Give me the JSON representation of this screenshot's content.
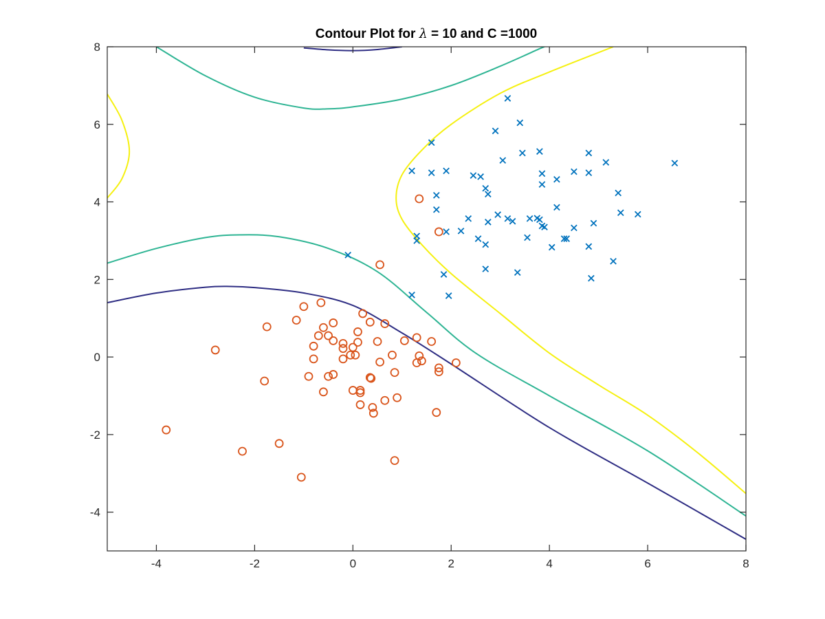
{
  "chart_data": {
    "type": "scatter",
    "title": "Contour Plot for λ = 10 and C =1000",
    "title_parts": {
      "prefix": "Contour Plot for ",
      "symbol": "λ",
      "suffix": " = 10 and C =1000"
    },
    "xlabel": "",
    "ylabel": "",
    "xlim": [
      -5,
      8
    ],
    "ylim": [
      -5,
      8
    ],
    "xticks": [
      -4,
      -2,
      0,
      2,
      4,
      6,
      8
    ],
    "yticks": [
      -4,
      -2,
      0,
      2,
      4,
      6,
      8
    ],
    "grid": false,
    "colors": {
      "crosses": "#0072bd",
      "circles": "#d95319",
      "contour_low": "#2e2d83",
      "contour_mid": "#2db493",
      "contour_high": "#f5f00f",
      "axes": "#262626"
    },
    "series": [
      {
        "marker": "x",
        "color": "#0072bd",
        "points": [
          [
            3.15,
            6.67
          ],
          [
            3.4,
            6.04
          ],
          [
            2.9,
            5.83
          ],
          [
            1.6,
            5.53
          ],
          [
            3.45,
            5.26
          ],
          [
            3.8,
            5.3
          ],
          [
            4.8,
            5.26
          ],
          [
            5.15,
            5.02
          ],
          [
            6.55,
            5.0
          ],
          [
            3.05,
            5.07
          ],
          [
            1.2,
            4.8
          ],
          [
            1.6,
            4.75
          ],
          [
            1.9,
            4.8
          ],
          [
            2.45,
            4.68
          ],
          [
            2.6,
            4.65
          ],
          [
            3.85,
            4.73
          ],
          [
            4.5,
            4.78
          ],
          [
            4.8,
            4.75
          ],
          [
            4.15,
            4.58
          ],
          [
            3.85,
            4.45
          ],
          [
            2.7,
            4.35
          ],
          [
            2.75,
            4.2
          ],
          [
            1.7,
            4.17
          ],
          [
            5.4,
            4.23
          ],
          [
            1.7,
            3.8
          ],
          [
            4.15,
            3.86
          ],
          [
            5.45,
            3.72
          ],
          [
            5.8,
            3.68
          ],
          [
            2.95,
            3.67
          ],
          [
            2.35,
            3.57
          ],
          [
            3.15,
            3.57
          ],
          [
            3.25,
            3.5
          ],
          [
            2.75,
            3.48
          ],
          [
            3.6,
            3.57
          ],
          [
            3.75,
            3.58
          ],
          [
            3.8,
            3.54
          ],
          [
            4.9,
            3.45
          ],
          [
            3.85,
            3.38
          ],
          [
            3.9,
            3.35
          ],
          [
            4.5,
            3.33
          ],
          [
            1.9,
            3.23
          ],
          [
            2.2,
            3.25
          ],
          [
            1.3,
            3.12
          ],
          [
            1.3,
            3.0
          ],
          [
            2.55,
            3.05
          ],
          [
            3.55,
            3.08
          ],
          [
            4.3,
            3.05
          ],
          [
            4.35,
            3.05
          ],
          [
            2.7,
            2.9
          ],
          [
            4.05,
            2.83
          ],
          [
            4.8,
            2.85
          ],
          [
            -0.1,
            2.63
          ],
          [
            5.3,
            2.47
          ],
          [
            2.7,
            2.27
          ],
          [
            3.35,
            2.18
          ],
          [
            1.85,
            2.13
          ],
          [
            4.85,
            2.03
          ],
          [
            1.2,
            1.6
          ],
          [
            1.95,
            1.58
          ]
        ]
      },
      {
        "marker": "o",
        "color": "#d95319",
        "points": [
          [
            1.35,
            4.08
          ],
          [
            1.75,
            3.23
          ],
          [
            0.55,
            2.38
          ],
          [
            -0.65,
            1.4
          ],
          [
            -1.0,
            1.3
          ],
          [
            0.2,
            1.12
          ],
          [
            -1.15,
            0.95
          ],
          [
            -0.4,
            0.88
          ],
          [
            0.35,
            0.9
          ],
          [
            0.65,
            0.86
          ],
          [
            -1.75,
            0.78
          ],
          [
            -0.6,
            0.76
          ],
          [
            0.1,
            0.65
          ],
          [
            -0.7,
            0.55
          ],
          [
            -0.5,
            0.55
          ],
          [
            -0.4,
            0.42
          ],
          [
            0.5,
            0.4
          ],
          [
            1.05,
            0.42
          ],
          [
            1.3,
            0.5
          ],
          [
            1.6,
            0.4
          ],
          [
            -0.2,
            0.35
          ],
          [
            0.1,
            0.38
          ],
          [
            -0.8,
            0.28
          ],
          [
            -0.2,
            0.22
          ],
          [
            0.0,
            0.25
          ],
          [
            -2.8,
            0.18
          ],
          [
            -0.05,
            0.05
          ],
          [
            0.05,
            0.05
          ],
          [
            0.8,
            0.05
          ],
          [
            -0.2,
            -0.05
          ],
          [
            -0.8,
            -0.05
          ],
          [
            1.35,
            0.03
          ],
          [
            0.55,
            -0.13
          ],
          [
            1.3,
            -0.15
          ],
          [
            1.4,
            -0.1
          ],
          [
            2.1,
            -0.15
          ],
          [
            1.75,
            -0.28
          ],
          [
            1.75,
            -0.38
          ],
          [
            0.85,
            -0.4
          ],
          [
            -0.9,
            -0.5
          ],
          [
            -0.5,
            -0.5
          ],
          [
            -0.4,
            -0.45
          ],
          [
            0.35,
            -0.53
          ],
          [
            0.37,
            -0.55
          ],
          [
            -1.8,
            -0.62
          ],
          [
            0.0,
            -0.86
          ],
          [
            0.15,
            -0.86
          ],
          [
            0.15,
            -0.92
          ],
          [
            -0.6,
            -0.9
          ],
          [
            0.9,
            -1.05
          ],
          [
            0.65,
            -1.12
          ],
          [
            0.15,
            -1.23
          ],
          [
            0.4,
            -1.3
          ],
          [
            0.42,
            -1.45
          ],
          [
            1.7,
            -1.43
          ],
          [
            -3.8,
            -1.88
          ],
          [
            -1.5,
            -2.23
          ],
          [
            -2.25,
            -2.43
          ],
          [
            0.85,
            -2.67
          ],
          [
            -1.05,
            -3.1
          ]
        ]
      }
    ],
    "contours": [
      {
        "level": "low",
        "color": "#2e2d83",
        "paths": [
          [
            [
              -5,
              1.4
            ],
            [
              -4,
              1.65
            ],
            [
              -3,
              1.8
            ],
            [
              -2.5,
              1.82
            ],
            [
              -2,
              1.79
            ],
            [
              -1,
              1.65
            ],
            [
              0,
              1.33
            ],
            [
              1,
              0.62
            ],
            [
              2,
              -0.18
            ],
            [
              4,
              -1.82
            ],
            [
              6,
              -3.25
            ],
            [
              8,
              -4.7
            ]
          ],
          [
            [
              -1,
              7.97
            ],
            [
              -0.5,
              7.92
            ],
            [
              0,
              7.9
            ],
            [
              0.5,
              7.93
            ],
            [
              1,
              8.0
            ]
          ]
        ]
      },
      {
        "level": "mid",
        "color": "#2db493",
        "paths": [
          [
            [
              -5,
              2.42
            ],
            [
              -4,
              2.8
            ],
            [
              -3,
              3.08
            ],
            [
              -2.3,
              3.15
            ],
            [
              -1.5,
              3.1
            ],
            [
              -0.5,
              2.8
            ],
            [
              0.5,
              2.2
            ],
            [
              1.5,
              1.15
            ],
            [
              2.5,
              0.1
            ],
            [
              4,
              -1.0
            ],
            [
              6,
              -2.42
            ],
            [
              8,
              -4.1
            ]
          ],
          [
            [
              -4,
              8.0
            ],
            [
              -3,
              7.25
            ],
            [
              -2,
              6.7
            ],
            [
              -1,
              6.42
            ],
            [
              -0.5,
              6.4
            ],
            [
              0,
              6.45
            ],
            [
              1,
              6.65
            ],
            [
              2,
              7.0
            ],
            [
              3,
              7.5
            ],
            [
              3.8,
              7.95
            ],
            [
              3.9,
              8.0
            ]
          ]
        ]
      },
      {
        "level": "high",
        "color": "#f5f00f",
        "paths": [
          [
            [
              5.3,
              8.0
            ],
            [
              4,
              7.35
            ],
            [
              3,
              6.8
            ],
            [
              2,
              6.0
            ],
            [
              1.4,
              5.33
            ],
            [
              1.0,
              4.7
            ],
            [
              0.88,
              4.1
            ],
            [
              1.0,
              3.55
            ],
            [
              1.4,
              2.9
            ],
            [
              2,
              2.15
            ],
            [
              3,
              1.12
            ],
            [
              4,
              0.1
            ],
            [
              5,
              -0.72
            ],
            [
              6,
              -1.5
            ],
            [
              7,
              -2.45
            ],
            [
              8,
              -3.52
            ]
          ],
          [
            [
              -5,
              6.78
            ],
            [
              -4.7,
              6.1
            ],
            [
              -4.55,
              5.3
            ],
            [
              -4.7,
              4.6
            ],
            [
              -5,
              4.1
            ]
          ]
        ]
      }
    ]
  }
}
